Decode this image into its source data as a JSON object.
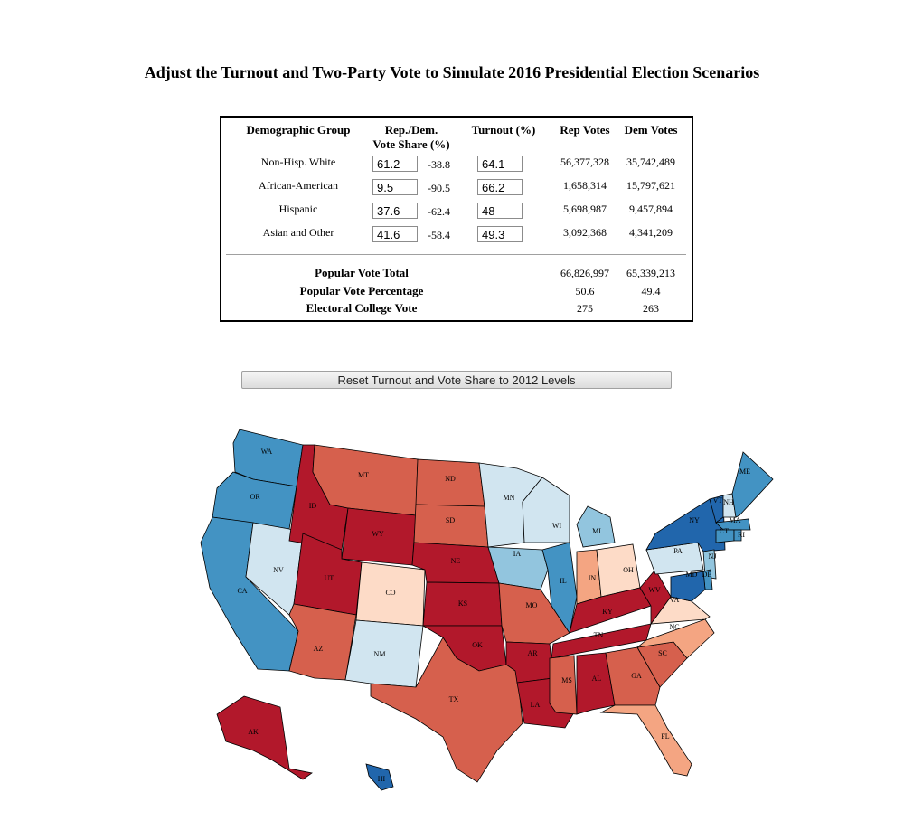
{
  "title": "Adjust the Turnout and Two-Party Vote to Simulate 2016 Presidential Election Scenarios",
  "table": {
    "headers": {
      "group": "Demographic Group",
      "share_line1": "Rep./Dem.",
      "share_line2": "Vote Share (%)",
      "turnout": "Turnout (%)",
      "rep": "Rep Votes",
      "dem": "Dem Votes"
    },
    "rows": [
      {
        "group": "Non-Hisp. White",
        "share": "61.2",
        "diff": "-38.8",
        "turnout": "64.1",
        "rep": "56,377,328",
        "dem": "35,742,489"
      },
      {
        "group": "African-American",
        "share": "9.5",
        "diff": "-90.5",
        "turnout": "66.2",
        "rep": "1,658,314",
        "dem": "15,797,621"
      },
      {
        "group": "Hispanic",
        "share": "37.6",
        "diff": "-62.4",
        "turnout": "48",
        "rep": "5,698,987",
        "dem": "9,457,894"
      },
      {
        "group": "Asian and Other",
        "share": "41.6",
        "diff": "-58.4",
        "turnout": "49.3",
        "rep": "3,092,368",
        "dem": "4,341,209"
      }
    ],
    "totals": [
      {
        "label": "Popular Vote Total",
        "rep": "66,826,997",
        "dem": "65,339,213"
      },
      {
        "label": "Popular Vote Percentage",
        "rep": "50.6",
        "dem": "49.4"
      },
      {
        "label": "Electoral College Vote",
        "rep": "275",
        "dem": "263"
      }
    ]
  },
  "reset_button": "Reset Turnout and Vote Share to 2012 Levels",
  "map": {
    "colors": {
      "strong_rep": "#b2182b",
      "rep": "#d6604d",
      "lean_rep": "#f4a582",
      "tilt_rep": "#fddbc7",
      "tilt_dem": "#d1e5f0",
      "lean_dem": "#92c5de",
      "dem": "#4393c3",
      "strong_dem": "#2166ac"
    },
    "states": [
      {
        "abbr": "WA",
        "rating": "dem"
      },
      {
        "abbr": "OR",
        "rating": "dem"
      },
      {
        "abbr": "CA",
        "rating": "dem"
      },
      {
        "abbr": "NV",
        "rating": "tilt_dem"
      },
      {
        "abbr": "ID",
        "rating": "strong_rep"
      },
      {
        "abbr": "MT",
        "rating": "rep"
      },
      {
        "abbr": "WY",
        "rating": "strong_rep"
      },
      {
        "abbr": "UT",
        "rating": "strong_rep"
      },
      {
        "abbr": "AZ",
        "rating": "rep"
      },
      {
        "abbr": "CO",
        "rating": "tilt_rep"
      },
      {
        "abbr": "NM",
        "rating": "tilt_dem"
      },
      {
        "abbr": "ND",
        "rating": "rep"
      },
      {
        "abbr": "SD",
        "rating": "rep"
      },
      {
        "abbr": "NE",
        "rating": "strong_rep"
      },
      {
        "abbr": "KS",
        "rating": "strong_rep"
      },
      {
        "abbr": "OK",
        "rating": "strong_rep"
      },
      {
        "abbr": "TX",
        "rating": "rep"
      },
      {
        "abbr": "MN",
        "rating": "tilt_dem"
      },
      {
        "abbr": "IA",
        "rating": "lean_dem"
      },
      {
        "abbr": "MO",
        "rating": "rep"
      },
      {
        "abbr": "AR",
        "rating": "strong_rep"
      },
      {
        "abbr": "LA",
        "rating": "strong_rep"
      },
      {
        "abbr": "WI",
        "rating": "tilt_dem"
      },
      {
        "abbr": "IL",
        "rating": "dem"
      },
      {
        "abbr": "MI",
        "rating": "lean_dem"
      },
      {
        "abbr": "IN",
        "rating": "lean_rep"
      },
      {
        "abbr": "OH",
        "rating": "tilt_rep"
      },
      {
        "abbr": "KY",
        "rating": "strong_rep"
      },
      {
        "abbr": "TN",
        "rating": "strong_rep"
      },
      {
        "abbr": "MS",
        "rating": "rep"
      },
      {
        "abbr": "AL",
        "rating": "strong_rep"
      },
      {
        "abbr": "GA",
        "rating": "rep"
      },
      {
        "abbr": "FL",
        "rating": "lean_rep"
      },
      {
        "abbr": "SC",
        "rating": "rep"
      },
      {
        "abbr": "NC",
        "rating": "lean_rep"
      },
      {
        "abbr": "VA",
        "rating": "tilt_rep"
      },
      {
        "abbr": "WV",
        "rating": "strong_rep"
      },
      {
        "abbr": "PA",
        "rating": "tilt_dem"
      },
      {
        "abbr": "NY",
        "rating": "strong_dem"
      },
      {
        "abbr": "VT",
        "rating": "strong_dem"
      },
      {
        "abbr": "NH",
        "rating": "tilt_dem"
      },
      {
        "abbr": "ME",
        "rating": "dem"
      },
      {
        "abbr": "MA",
        "rating": "dem"
      },
      {
        "abbr": "CT",
        "rating": "dem"
      },
      {
        "abbr": "RI",
        "rating": "dem"
      },
      {
        "abbr": "NJ",
        "rating": "lean_dem"
      },
      {
        "abbr": "DE",
        "rating": "dem"
      },
      {
        "abbr": "MD",
        "rating": "strong_dem"
      },
      {
        "abbr": "AK",
        "rating": "strong_rep"
      },
      {
        "abbr": "HI",
        "rating": "strong_dem"
      }
    ]
  }
}
